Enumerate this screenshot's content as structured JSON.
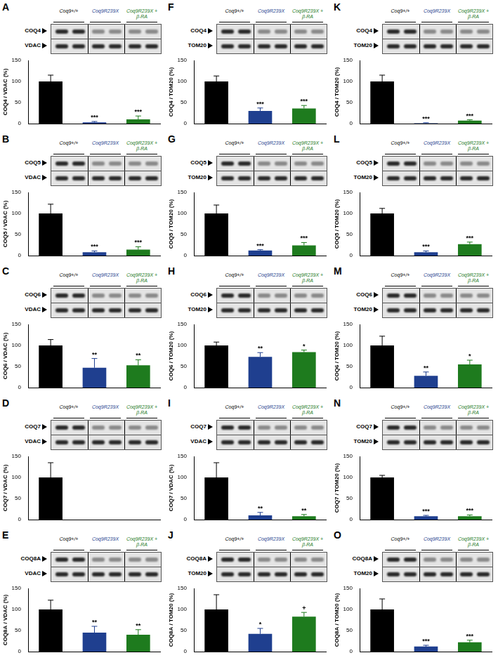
{
  "chart_data": [
    {
      "type": "bar",
      "title": "A",
      "categories": [
        "Coq9+/+",
        "Coq9R239X",
        "Coq9R239X + β-RA"
      ],
      "values": [
        100,
        3,
        10
      ],
      "errors": [
        15,
        2,
        8
      ],
      "annotations": [
        null,
        "***",
        "***"
      ],
      "colors": [
        "#000000",
        "#1f3f8f",
        "#1e7b1e"
      ],
      "ylabel": "COQ4 / VDAC (%)",
      "bands": [
        "COQ4",
        "VDAC"
      ],
      "ylim": [
        0,
        150
      ],
      "yticks": [
        0,
        50,
        100,
        150
      ],
      "grid": false,
      "tick_labels": "y"
    },
    {
      "type": "bar",
      "title": "B",
      "categories": [
        "Coq9+/+",
        "Coq9R239X",
        "Coq9R239X + β-RA"
      ],
      "values": [
        100,
        8,
        14
      ],
      "errors": [
        22,
        3,
        7
      ],
      "annotations": [
        null,
        "***",
        "***"
      ],
      "colors": [
        "#000000",
        "#1f3f8f",
        "#1e7b1e"
      ],
      "ylabel": "COQ5 / VDAC (%)",
      "bands": [
        "COQ5",
        "VDAC"
      ],
      "ylim": [
        0,
        150
      ],
      "yticks": [
        0,
        50,
        100,
        150
      ],
      "grid": false,
      "tick_labels": "y"
    },
    {
      "type": "bar",
      "title": "C",
      "categories": [
        "Coq9+/+",
        "Coq9R239X",
        "Coq9R239X + β-RA"
      ],
      "values": [
        100,
        47,
        53
      ],
      "errors": [
        14,
        22,
        13
      ],
      "annotations": [
        null,
        "**",
        "**"
      ],
      "colors": [
        "#000000",
        "#1f3f8f",
        "#1e7b1e"
      ],
      "ylabel": "COQ6 / VDAC (%)",
      "bands": [
        "COQ6",
        "VDAC"
      ],
      "ylim": [
        0,
        150
      ],
      "yticks": [
        0,
        50,
        100,
        150
      ],
      "grid": false,
      "tick_labels": "y"
    },
    {
      "type": "bar",
      "title": "D",
      "categories": [
        "Coq9+/+",
        "Coq9R239X",
        "Coq9R239X + β-RA"
      ],
      "values": [
        100,
        0,
        0
      ],
      "errors": [
        35,
        null,
        null
      ],
      "annotations": [
        null,
        null,
        null
      ],
      "colors": [
        "#000000",
        "#1f3f8f",
        "#1e7b1e"
      ],
      "ylabel": "COQ7 / VDAC (%)",
      "bands": [
        "COQ7",
        "VDAC"
      ],
      "ylim": [
        0,
        150
      ],
      "yticks": [
        0,
        50,
        100,
        150
      ],
      "grid": false,
      "tick_labels": "y"
    },
    {
      "type": "bar",
      "title": "E",
      "categories": [
        "Coq9+/+",
        "Coq9R239X",
        "Coq9R239X + β-RA"
      ],
      "values": [
        100,
        45,
        40
      ],
      "errors": [
        22,
        15,
        12
      ],
      "annotations": [
        null,
        "**",
        "**"
      ],
      "colors": [
        "#000000",
        "#1f3f8f",
        "#1e7b1e"
      ],
      "ylabel": "COQ8A / VDAC (%)",
      "bands": [
        "COQ8A",
        "VDAC"
      ],
      "ylim": [
        0,
        150
      ],
      "yticks": [
        0,
        50,
        100,
        150
      ],
      "grid": false,
      "tick_labels": "y"
    },
    {
      "type": "bar",
      "title": "F",
      "categories": [
        "Coq9+/+",
        "Coq9R239X",
        "Coq9R239X + β-RA"
      ],
      "values": [
        100,
        30,
        36
      ],
      "errors": [
        13,
        7,
        7
      ],
      "annotations": [
        null,
        "***",
        "***"
      ],
      "colors": [
        "#000000",
        "#1f3f8f",
        "#1e7b1e"
      ],
      "ylabel": "COQ4 / TOM20 (%)",
      "bands": [
        "COQ4",
        "TOM20"
      ],
      "ylim": [
        0,
        150
      ],
      "yticks": [
        0,
        50,
        100,
        150
      ],
      "grid": false,
      "tick_labels": "y"
    },
    {
      "type": "bar",
      "title": "G",
      "categories": [
        "Coq9+/+",
        "Coq9R239X",
        "Coq9R239X + β-RA"
      ],
      "values": [
        100,
        12,
        24
      ],
      "errors": [
        20,
        2,
        7
      ],
      "annotations": [
        null,
        "***",
        "***"
      ],
      "colors": [
        "#000000",
        "#1f3f8f",
        "#1e7b1e"
      ],
      "ylabel": "COQ5 / TOM20 (%)",
      "bands": [
        "COQ5",
        "TOM20"
      ],
      "ylim": [
        0,
        150
      ],
      "yticks": [
        0,
        50,
        100,
        150
      ],
      "grid": false,
      "tick_labels": "y"
    },
    {
      "type": "bar",
      "title": "H",
      "categories": [
        "Coq9+/+",
        "Coq9R239X",
        "Coq9R239X + β-RA"
      ],
      "values": [
        100,
        73,
        84
      ],
      "errors": [
        8,
        10,
        5
      ],
      "annotations": [
        null,
        "**",
        "*"
      ],
      "colors": [
        "#000000",
        "#1f3f8f",
        "#1e7b1e"
      ],
      "ylabel": "COQ6 / TOM20 (%)",
      "bands": [
        "COQ6",
        "TOM20"
      ],
      "ylim": [
        0,
        150
      ],
      "yticks": [
        0,
        50,
        100,
        150
      ],
      "grid": false,
      "tick_labels": "y"
    },
    {
      "type": "bar",
      "title": "I",
      "categories": [
        "Coq9+/+",
        "Coq9R239X",
        "Coq9R239X + β-RA"
      ],
      "values": [
        100,
        10,
        8
      ],
      "errors": [
        35,
        7,
        4
      ],
      "annotations": [
        null,
        "**",
        "**"
      ],
      "colors": [
        "#000000",
        "#1f3f8f",
        "#1e7b1e"
      ],
      "ylabel": "COQ7 / VDAC (%)",
      "bands": [
        "COQ7",
        "VDAC"
      ],
      "ylim": [
        0,
        150
      ],
      "yticks": [
        0,
        50,
        100,
        150
      ],
      "grid": false,
      "tick_labels": "y"
    },
    {
      "type": "bar",
      "title": "J",
      "categories": [
        "Coq9+/+",
        "Coq9R239X",
        "Coq9R239X + β-RA"
      ],
      "values": [
        100,
        42,
        83
      ],
      "errors": [
        35,
        13,
        10
      ],
      "annotations": [
        null,
        "*",
        "+"
      ],
      "colors": [
        "#000000",
        "#1f3f8f",
        "#1e7b1e"
      ],
      "ylabel": "COQ8A / TOM20 (%)",
      "bands": [
        "COQ8A",
        "TOM20"
      ],
      "ylim": [
        0,
        150
      ],
      "yticks": [
        0,
        50,
        100,
        150
      ],
      "grid": false,
      "tick_labels": "y"
    },
    {
      "type": "bar",
      "title": "K",
      "categories": [
        "Coq9+/+",
        "Coq9R239X",
        "Coq9R239X + β-RA"
      ],
      "values": [
        100,
        1,
        7
      ],
      "errors": [
        15,
        1,
        2
      ],
      "annotations": [
        null,
        "***",
        "***"
      ],
      "colors": [
        "#000000",
        "#1f3f8f",
        "#1e7b1e"
      ],
      "ylabel": "COQ4 / TOM20 (%)",
      "bands": [
        "COQ4",
        "TOM20"
      ],
      "ylim": [
        0,
        150
      ],
      "yticks": [
        0,
        50,
        100,
        150
      ],
      "grid": false,
      "tick_labels": "y"
    },
    {
      "type": "bar",
      "title": "L",
      "categories": [
        "Coq9+/+",
        "Coq9R239X",
        "Coq9R239X + β-RA"
      ],
      "values": [
        100,
        8,
        27
      ],
      "errors": [
        12,
        3,
        5
      ],
      "annotations": [
        null,
        "***",
        "***"
      ],
      "colors": [
        "#000000",
        "#1f3f8f",
        "#1e7b1e"
      ],
      "ylabel": "COQ5 / TOM20 (%)",
      "bands": [
        "COQ5",
        "TOM20"
      ],
      "ylim": [
        0,
        150
      ],
      "yticks": [
        0,
        50,
        100,
        150
      ],
      "grid": false,
      "tick_labels": "y"
    },
    {
      "type": "bar",
      "title": "M",
      "categories": [
        "Coq9+/+",
        "Coq9R239X",
        "Coq9R239X + β-RA"
      ],
      "values": [
        100,
        28,
        55
      ],
      "errors": [
        22,
        9,
        10
      ],
      "annotations": [
        null,
        "**",
        "*"
      ],
      "colors": [
        "#000000",
        "#1f3f8f",
        "#1e7b1e"
      ],
      "ylabel": "COQ6 / TOM20 (%)",
      "bands": [
        "COQ6",
        "TOM20"
      ],
      "ylim": [
        0,
        150
      ],
      "yticks": [
        0,
        50,
        100,
        150
      ],
      "grid": false,
      "tick_labels": "y"
    },
    {
      "type": "bar",
      "title": "N",
      "categories": [
        "Coq9+/+",
        "Coq9R239X",
        "Coq9R239X + β-RA"
      ],
      "values": [
        100,
        8,
        8
      ],
      "errors": [
        5,
        2,
        3
      ],
      "annotations": [
        null,
        "***",
        "***"
      ],
      "colors": [
        "#000000",
        "#1f3f8f",
        "#1e7b1e"
      ],
      "ylabel": "COQ7 / TOM20 (%)",
      "bands": [
        "COQ7",
        "TOM20"
      ],
      "ylim": [
        0,
        150
      ],
      "yticks": [
        0,
        50,
        100,
        150
      ],
      "grid": false,
      "tick_labels": "y"
    },
    {
      "type": "bar",
      "title": "O",
      "categories": [
        "Coq9+/+",
        "Coq9R239X",
        "Coq9R239X + β-RA"
      ],
      "values": [
        100,
        12,
        22
      ],
      "errors": [
        25,
        3,
        5
      ],
      "annotations": [
        null,
        "***",
        "***"
      ],
      "colors": [
        "#000000",
        "#1f3f8f",
        "#1e7b1e"
      ],
      "ylabel": "COQ8A / TOM20 (%)",
      "bands": [
        "COQ8A",
        "TOM20"
      ],
      "ylim": [
        0,
        150
      ],
      "yticks": [
        0,
        50,
        100,
        150
      ],
      "grid": false,
      "tick_labels": "y"
    }
  ]
}
